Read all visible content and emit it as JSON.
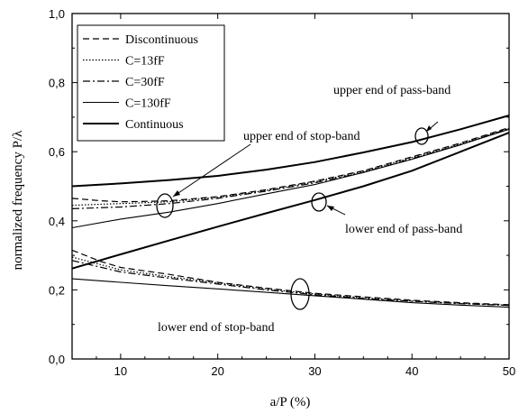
{
  "chart_data": {
    "type": "line",
    "xlabel": "a/P (%)",
    "ylabel": "normalized frequency P/λ",
    "xlim": [
      5,
      50
    ],
    "ylim": [
      0.0,
      1.0
    ],
    "xticks": [
      "10",
      "20",
      "30",
      "40",
      "50"
    ],
    "yticks": [
      "0,0",
      "0,2",
      "0,4",
      "0,6",
      "0,8",
      "1,0"
    ],
    "grid": false,
    "legend_position": "top-left",
    "series": [
      {
        "name": "Discontinuous",
        "style": "dashed",
        "width": 1.2,
        "segments": [
          [
            [
              5,
              0.465
            ],
            [
              8,
              0.458
            ],
            [
              10,
              0.455
            ],
            [
              12,
              0.456
            ],
            [
              15,
              0.458
            ],
            [
              20,
              0.47
            ],
            [
              25,
              0.49
            ],
            [
              30,
              0.515
            ],
            [
              35,
              0.545
            ],
            [
              40,
              0.585
            ],
            [
              45,
              0.625
            ],
            [
              50,
              0.67
            ]
          ],
          [
            [
              5,
              0.315
            ],
            [
              8,
              0.282
            ],
            [
              10,
              0.265
            ],
            [
              15,
              0.245
            ],
            [
              20,
              0.222
            ],
            [
              25,
              0.205
            ],
            [
              30,
              0.19
            ],
            [
              35,
              0.18
            ],
            [
              40,
              0.17
            ],
            [
              45,
              0.163
            ],
            [
              50,
              0.157
            ]
          ]
        ]
      },
      {
        "name": "C=13fF",
        "style": "dotted",
        "width": 1.2,
        "segments": [
          [
            [
              5,
              0.445
            ],
            [
              10,
              0.45
            ],
            [
              15,
              0.455
            ],
            [
              20,
              0.468
            ],
            [
              25,
              0.488
            ],
            [
              30,
              0.513
            ],
            [
              35,
              0.543
            ],
            [
              40,
              0.583
            ],
            [
              45,
              0.623
            ],
            [
              50,
              0.668
            ]
          ],
          [
            [
              5,
              0.295
            ],
            [
              10,
              0.258
            ],
            [
              15,
              0.238
            ],
            [
              20,
              0.22
            ],
            [
              25,
              0.203
            ],
            [
              30,
              0.188
            ],
            [
              35,
              0.177
            ],
            [
              40,
              0.168
            ],
            [
              45,
              0.161
            ],
            [
              50,
              0.156
            ]
          ]
        ]
      },
      {
        "name": "C=30fF",
        "style": "dashdot",
        "width": 1.2,
        "segments": [
          [
            [
              5,
              0.435
            ],
            [
              10,
              0.44
            ],
            [
              15,
              0.45
            ],
            [
              20,
              0.465
            ],
            [
              25,
              0.486
            ],
            [
              30,
              0.51
            ],
            [
              35,
              0.54
            ],
            [
              40,
              0.58
            ],
            [
              45,
              0.62
            ],
            [
              50,
              0.667
            ]
          ],
          [
            [
              5,
              0.285
            ],
            [
              10,
              0.252
            ],
            [
              15,
              0.234
            ],
            [
              20,
              0.217
            ],
            [
              25,
              0.2
            ],
            [
              30,
              0.186
            ],
            [
              35,
              0.175
            ],
            [
              40,
              0.167
            ],
            [
              45,
              0.16
            ],
            [
              50,
              0.155
            ]
          ]
        ]
      },
      {
        "name": "C=130fF",
        "style": "solid",
        "width": 1.1,
        "segments": [
          [
            [
              5,
              0.38
            ],
            [
              10,
              0.405
            ],
            [
              15,
              0.425
            ],
            [
              20,
              0.45
            ],
            [
              25,
              0.478
            ],
            [
              30,
              0.505
            ],
            [
              35,
              0.54
            ],
            [
              40,
              0.578
            ],
            [
              45,
              0.62
            ],
            [
              50,
              0.665
            ]
          ],
          [
            [
              5,
              0.232
            ],
            [
              10,
              0.222
            ],
            [
              15,
              0.212
            ],
            [
              20,
              0.203
            ],
            [
              25,
              0.193
            ],
            [
              30,
              0.183
            ],
            [
              35,
              0.173
            ],
            [
              40,
              0.163
            ],
            [
              45,
              0.156
            ],
            [
              50,
              0.15
            ]
          ]
        ]
      },
      {
        "name": "Continuous",
        "style": "solid",
        "width": 2.0,
        "segments": [
          [
            [
              5,
              0.5
            ],
            [
              10,
              0.508
            ],
            [
              15,
              0.518
            ],
            [
              20,
              0.53
            ],
            [
              25,
              0.548
            ],
            [
              30,
              0.57
            ],
            [
              35,
              0.598
            ],
            [
              40,
              0.628
            ],
            [
              45,
              0.665
            ],
            [
              50,
              0.705
            ]
          ],
          [
            [
              5,
              0.262
            ],
            [
              10,
              0.303
            ],
            [
              15,
              0.343
            ],
            [
              20,
              0.383
            ],
            [
              25,
              0.422
            ],
            [
              30,
              0.46
            ],
            [
              35,
              0.5
            ],
            [
              40,
              0.545
            ],
            [
              45,
              0.6
            ],
            [
              50,
              0.655
            ]
          ]
        ]
      }
    ],
    "annotations": [
      {
        "text": "upper end of pass-band"
      },
      {
        "text": "upper end of stop-band"
      },
      {
        "text": "lower end of pass-band"
      },
      {
        "text": "lower end of stop-band"
      }
    ]
  }
}
